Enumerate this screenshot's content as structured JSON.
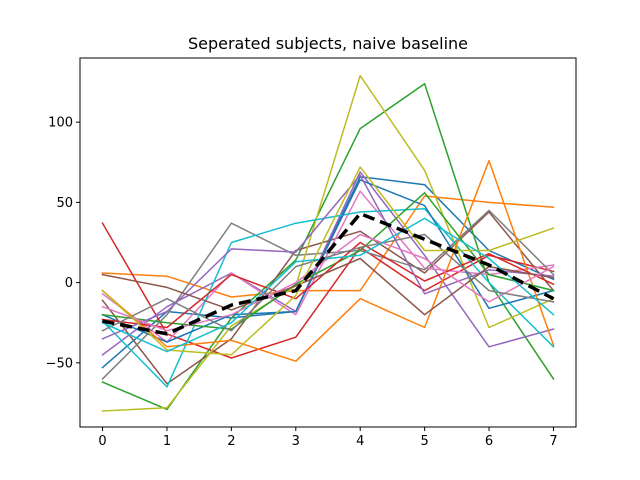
{
  "chart_data": {
    "type": "line",
    "title": "Seperated subjects, naive baseline",
    "xlabel": "",
    "ylabel": "",
    "x": [
      0,
      1,
      2,
      3,
      4,
      5,
      6,
      7
    ],
    "xlim": [
      -0.35,
      7.35
    ],
    "ylim": [
      -90,
      140
    ],
    "xticks": [
      0,
      1,
      2,
      3,
      4,
      5,
      6,
      7
    ],
    "yticks": [
      -50,
      0,
      50,
      100
    ],
    "grid": false,
    "legend": "none",
    "series": [
      {
        "color": "#1f77b4",
        "values": [
          -53,
          -18,
          -22,
          -18,
          66,
          61,
          20,
          2
        ]
      },
      {
        "color": "#ff7f0e",
        "values": [
          6,
          4,
          -9,
          -5,
          -5,
          54,
          50,
          47
        ]
      },
      {
        "color": "#2ca02c",
        "values": [
          -62,
          -79,
          -22,
          14,
          96,
          124,
          0,
          -60
        ]
      },
      {
        "color": "#d62728",
        "values": [
          37,
          -32,
          -47,
          -34,
          22,
          -5,
          17,
          7
        ]
      },
      {
        "color": "#9467bd",
        "values": [
          -45,
          -15,
          6,
          -18,
          69,
          17,
          -40,
          -29
        ]
      },
      {
        "color": "#8c564b",
        "values": [
          -11,
          -63,
          -35,
          20,
          32,
          6,
          44,
          -5
        ]
      },
      {
        "color": "#e377c2",
        "values": [
          -7,
          -37,
          6,
          -20,
          57,
          9,
          5,
          11
        ]
      },
      {
        "color": "#7f7f7f",
        "values": [
          -60,
          -20,
          37,
          17,
          20,
          8,
          45,
          5
        ]
      },
      {
        "color": "#bcbd22",
        "values": [
          -80,
          -78,
          -27,
          -2,
          129,
          70,
          -28,
          -10
        ]
      },
      {
        "color": "#17becf",
        "values": [
          -24,
          -65,
          25,
          37,
          44,
          46,
          0,
          -40
        ]
      },
      {
        "color": "#1f77b4",
        "values": [
          -20,
          -37,
          -20,
          -18,
          64,
          48,
          -16,
          -5
        ]
      },
      {
        "color": "#ff7f0e",
        "values": [
          -5,
          -40,
          -36,
          -49,
          -10,
          -28,
          76,
          -39
        ]
      },
      {
        "color": "#2ca02c",
        "values": [
          -20,
          -25,
          -29,
          -1,
          20,
          56,
          5,
          -5
        ]
      },
      {
        "color": "#d62728",
        "values": [
          -23,
          -28,
          5,
          -10,
          25,
          1,
          18,
          -1
        ]
      },
      {
        "color": "#9467bd",
        "values": [
          -35,
          -18,
          21,
          19,
          67,
          -7,
          8,
          4
        ]
      },
      {
        "color": "#8c564b",
        "values": [
          5,
          -3,
          -17,
          -2,
          15,
          -20,
          10,
          3
        ]
      },
      {
        "color": "#e377c2",
        "values": [
          -15,
          -30,
          -20,
          0,
          30,
          15,
          -12,
          10
        ]
      },
      {
        "color": "#7f7f7f",
        "values": [
          -30,
          -10,
          -30,
          10,
          22,
          30,
          -5,
          -12
        ]
      },
      {
        "color": "#bcbd22",
        "values": [
          -5,
          -42,
          -45,
          -8,
          72,
          20,
          20,
          34
        ]
      },
      {
        "color": "#17becf",
        "values": [
          -25,
          -43,
          -25,
          13,
          17,
          40,
          15,
          -20
        ]
      }
    ],
    "mean": {
      "color": "#000000",
      "style": "dashed",
      "values": [
        -24,
        -32,
        -14,
        -5,
        43,
        27,
        11,
        -10
      ]
    }
  }
}
